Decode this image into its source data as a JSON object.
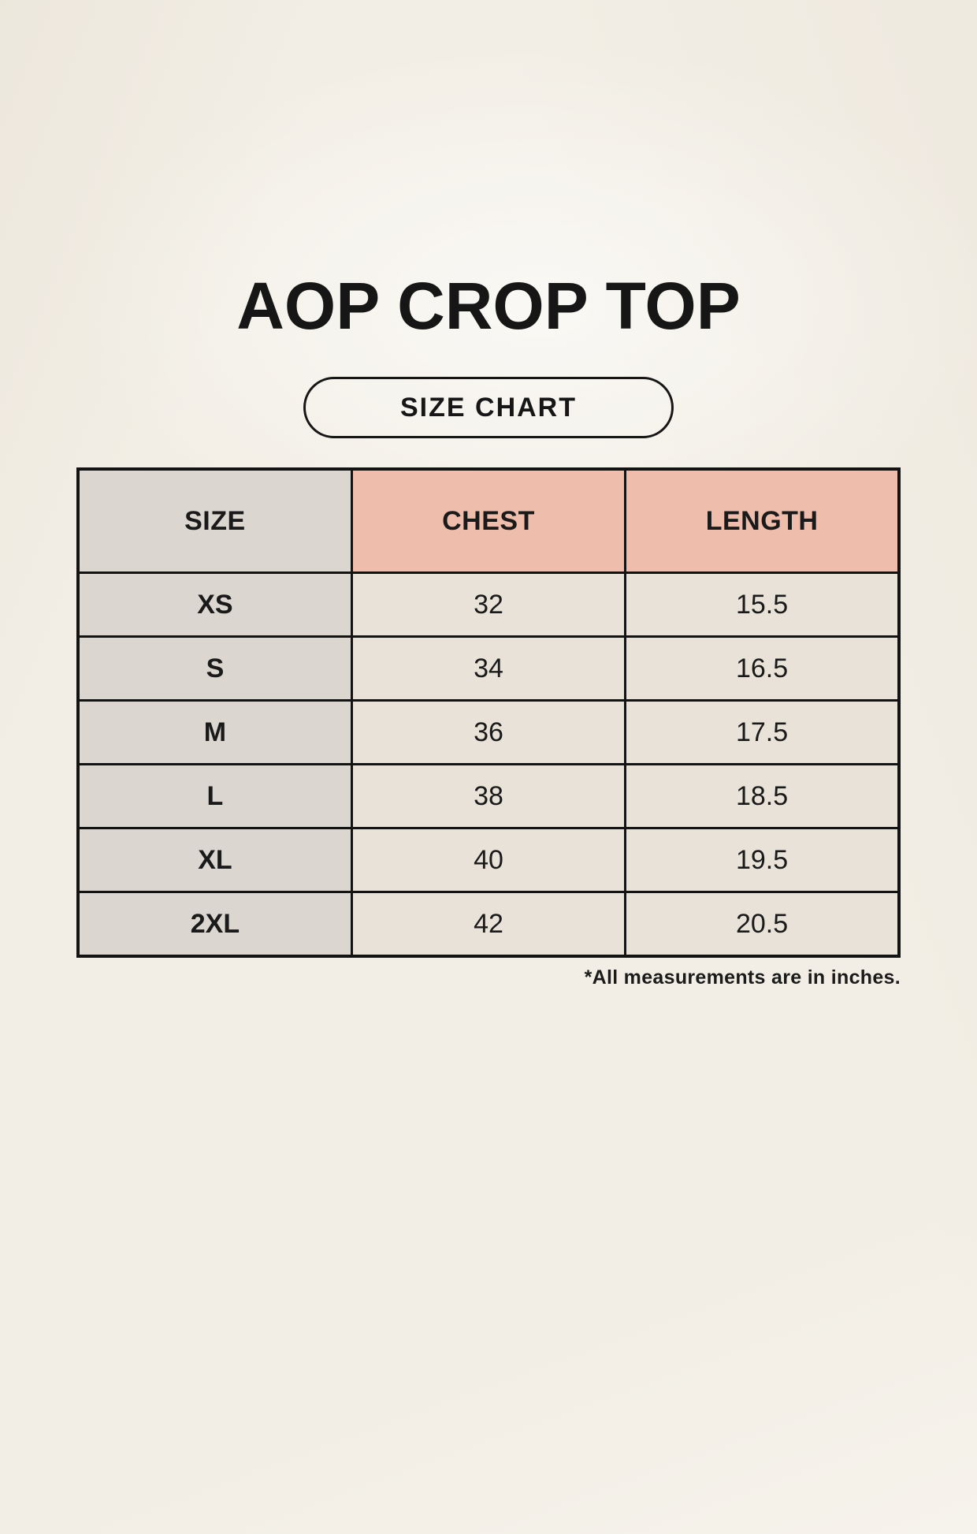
{
  "page": {
    "title": "AOP CROP TOP",
    "size_chart_label": "SIZE CHART",
    "footnote": "*All measurements are in inches."
  },
  "colors": {
    "background": "#f6f3ec",
    "size_column_bg": "#dcd6d1",
    "header_measure_bg": "#eebdac",
    "data_cell_bg": "#e9e2d8",
    "border": "#131313",
    "text": "#1a1a1a"
  },
  "table": {
    "headers": [
      "SIZE",
      "CHEST",
      "LENGTH"
    ],
    "rows": [
      [
        "XS",
        "32",
        "15.5"
      ],
      [
        "S",
        "34",
        "16.5"
      ],
      [
        "M",
        "36",
        "17.5"
      ],
      [
        "L",
        "38",
        "18.5"
      ],
      [
        "XL",
        "40",
        "19.5"
      ],
      [
        "2XL",
        "42",
        "20.5"
      ]
    ]
  },
  "chart_data": {
    "type": "table",
    "title": "AOP CROP TOP",
    "subtitle": "SIZE CHART",
    "columns": [
      "SIZE",
      "CHEST",
      "LENGTH"
    ],
    "rows": [
      {
        "size": "XS",
        "chest": 32,
        "length": 15.5
      },
      {
        "size": "S",
        "chest": 34,
        "length": 16.5
      },
      {
        "size": "M",
        "chest": 36,
        "length": 17.5
      },
      {
        "size": "L",
        "chest": 38,
        "length": 18.5
      },
      {
        "size": "XL",
        "chest": 40,
        "length": 19.5
      },
      {
        "size": "2XL",
        "chest": 42,
        "length": 20.5
      }
    ],
    "units": "inches",
    "note": "*All measurements are in inches."
  }
}
